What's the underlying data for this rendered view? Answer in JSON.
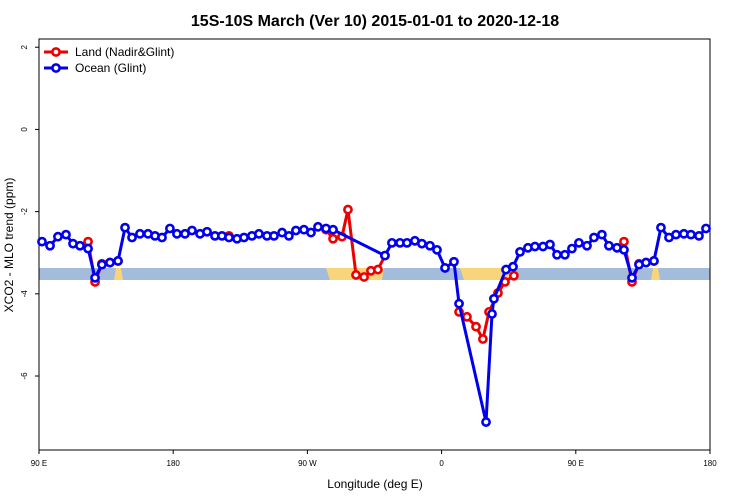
{
  "chart_data": {
    "type": "line",
    "title": "15S-10S March (Ver 10)   2015-01-01 to 2020-12-18",
    "xlabel": "Longitude (deg E)",
    "ylabel": "XCO2 - MLO trend (ppm)",
    "xlim": [
      90,
      540
    ],
    "xticks": [
      {
        "value": 90,
        "label": "90 E"
      },
      180,
      {
        "value": 270,
        "label": "90 W"
      },
      {
        "value": 360,
        "label": "0"
      },
      {
        "value": 450,
        "label": "90 E"
      },
      180
    ],
    "ylim": [
      -7.8,
      2.2
    ],
    "yticks": [
      2,
      0,
      -2,
      -4,
      -6
    ],
    "legend": "top-left",
    "series": [
      {
        "name": "Land (Nadir&Glint)",
        "color": "#ee0000",
        "x": [
          122.9,
          127.6,
          132.2,
          137.6,
          143,
          147.7,
          217.4,
          222.8,
          282.5,
          287.2,
          293.2,
          297.2,
          302.6,
          308,
          312.6,
          317.3,
          322,
          326.7,
          371.7,
          377,
          383.1,
          387.7,
          391.8,
          397.8,
          402.5,
          408.5,
          412.6,
          482.3,
          487.7,
          492.4,
          497.1,
          502.4
        ],
        "values": [
          -2.73,
          -3.71,
          -3.27,
          -3.24,
          -3.2,
          null,
          -2.59,
          null,
          -2.44,
          -2.66,
          -2.61,
          -1.95,
          -3.54,
          -3.59,
          -3.44,
          -3.41,
          -3.07,
          null,
          -4.44,
          -4.56,
          -4.8,
          -5.1,
          -4.44,
          -3.98,
          -3.71,
          -3.56,
          null,
          -2.73,
          -3.71,
          -3.27,
          -3.24,
          -3.2
        ]
      },
      {
        "name": "Ocean (Glint)",
        "color": "#0000ee",
        "x": [
          92,
          97.4,
          102.7,
          108.1,
          112.8,
          117.5,
          122.9,
          127.6,
          132.2,
          137.6,
          143,
          147.7,
          152.4,
          157.7,
          163.1,
          167.8,
          172.5,
          177.8,
          182.5,
          187.9,
          192.6,
          198,
          202.7,
          208,
          212.7,
          217.4,
          222.8,
          227.5,
          232.8,
          237.5,
          242.9,
          247.6,
          253,
          257.6,
          262.3,
          267.7,
          272.4,
          277.1,
          282.5,
          287.2,
          322,
          326.7,
          332.1,
          336.8,
          342.1,
          346.8,
          352.2,
          356.9,
          362.3,
          368.3,
          371.7,
          389.8,
          393.8,
          395.1,
          403.2,
          407.9,
          412.6,
          417.9,
          422.6,
          428,
          432.7,
          437.4,
          442.7,
          447.4,
          452.1,
          457.5,
          462.2,
          467.5,
          472.2,
          477.6,
          482.3,
          487.7,
          492.4,
          497.1,
          502.4,
          507.1,
          512.5,
          517.2,
          522.5,
          527.2,
          532.6,
          537.3
        ],
        "values": [
          -2.73,
          -2.83,
          -2.61,
          -2.56,
          -2.78,
          -2.83,
          -2.9,
          -3.61,
          -3.29,
          -3.24,
          -3.2,
          -2.39,
          -2.63,
          -2.54,
          -2.54,
          -2.59,
          -2.63,
          -2.41,
          -2.54,
          -2.54,
          -2.46,
          -2.54,
          -2.49,
          -2.59,
          -2.59,
          -2.63,
          -2.66,
          -2.63,
          -2.59,
          -2.54,
          -2.59,
          -2.59,
          -2.51,
          -2.59,
          -2.46,
          -2.44,
          -2.51,
          -2.37,
          -2.41,
          -2.44,
          -3.07,
          -2.76,
          -2.76,
          -2.76,
          -2.71,
          -2.78,
          -2.83,
          -2.93,
          -3.37,
          -3.22,
          -4.24,
          -7.12,
          -4.49,
          -4.12,
          -3.41,
          -3.34,
          -2.98,
          -2.88,
          -2.85,
          -2.85,
          -2.8,
          -3.05,
          -3.05,
          -2.9,
          -2.76,
          -2.83,
          -2.63,
          -2.56,
          -2.83,
          -2.88,
          -2.93,
          -3.61,
          -3.29,
          -3.24,
          -3.2,
          -2.39,
          -2.63,
          -2.56,
          -2.54,
          -2.56,
          -2.59,
          -2.41
        ]
      }
    ]
  }
}
